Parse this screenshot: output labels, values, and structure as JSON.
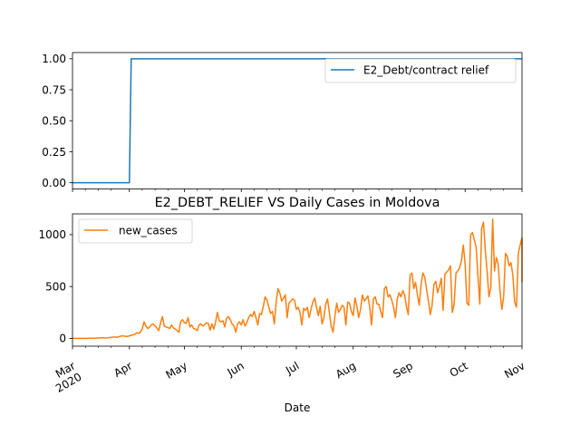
{
  "chart_data": [
    {
      "type": "line",
      "title": "",
      "xlabel": "",
      "ylabel": "",
      "ylim": [
        -0.05,
        1.05
      ],
      "yticks": [
        "0.00",
        "0.25",
        "0.50",
        "0.75",
        "1.00"
      ],
      "legend_placement": "upper right",
      "grid": false,
      "x_range": [
        "2020-03-01",
        "2020-11-01"
      ],
      "series": [
        {
          "name": "E2_Debt/contract relief",
          "color": "#1f77b4",
          "points": [
            [
              "2020-03-01",
              0
            ],
            [
              "2020-04-01",
              0
            ],
            [
              "2020-04-02",
              1
            ],
            [
              "2020-11-01",
              1
            ]
          ]
        }
      ]
    },
    {
      "type": "line",
      "title": "E2_DEBT_RELIEF VS Daily Cases in Moldova",
      "xlabel": "Date",
      "ylabel": "",
      "ylim": [
        -75,
        1200
      ],
      "yticks": [
        "0",
        "500",
        "1000"
      ],
      "legend_placement": "upper left",
      "grid": false,
      "x_range": [
        "2020-03-01",
        "2020-11-01"
      ],
      "x_tick_labels": [
        {
          "label": "Mar",
          "sub": "2020"
        },
        {
          "label": "Apr"
        },
        {
          "label": "May"
        },
        {
          "label": "Jun"
        },
        {
          "label": "Jul"
        },
        {
          "label": "Aug"
        },
        {
          "label": "Sep"
        },
        {
          "label": "Oct"
        },
        {
          "label": "Nov"
        }
      ],
      "series": [
        {
          "name": "new_cases",
          "color": "#ff7f0e",
          "start_date": "2020-03-01",
          "values": [
            0,
            0,
            0,
            0,
            0,
            0,
            0,
            1,
            0,
            1,
            2,
            1,
            0,
            3,
            5,
            4,
            6,
            7,
            3,
            6,
            8,
            10,
            12,
            14,
            10,
            15,
            20,
            25,
            22,
            20,
            18,
            25,
            30,
            35,
            38,
            55,
            48,
            60,
            90,
            160,
            120,
            95,
            110,
            130,
            140,
            120,
            100,
            75,
            150,
            210,
            120,
            110,
            105,
            95,
            130,
            100,
            90,
            75,
            60,
            165,
            180,
            150,
            145,
            200,
            110,
            130,
            95,
            90,
            75,
            130,
            140,
            120,
            130,
            150,
            145,
            80,
            140,
            90,
            160,
            250,
            170,
            160,
            170,
            110,
            195,
            210,
            180,
            140,
            120,
            60,
            140,
            160,
            130,
            180,
            120,
            150,
            200,
            230,
            210,
            260,
            200,
            130,
            240,
            230,
            310,
            400,
            370,
            300,
            240,
            260,
            140,
            350,
            480,
            440,
            360,
            390,
            420,
            200,
            340,
            360,
            380,
            370,
            280,
            300,
            250,
            130,
            290,
            270,
            300,
            200,
            280,
            350,
            390,
            300,
            220,
            310,
            140,
            200,
            330,
            380,
            250,
            120,
            60,
            210,
            340,
            250,
            280,
            320,
            300,
            130,
            350,
            340,
            260,
            220,
            390,
            310,
            200,
            280,
            420,
            360,
            380,
            410,
            300,
            130,
            380,
            400,
            330,
            330,
            260,
            200,
            480,
            500,
            400,
            420,
            370,
            300,
            200,
            380,
            440,
            400,
            460,
            420,
            310,
            230,
            610,
            630,
            480,
            540,
            420,
            320,
            520,
            630,
            590,
            470,
            360,
            230,
            320,
            520,
            550,
            440,
            500,
            580,
            270,
            620,
            640,
            660,
            700,
            250,
            330,
            630,
            650,
            680,
            750,
            900,
            720,
            340,
            320,
            1000,
            1020,
            950,
            880,
            600,
            330,
            1060,
            1120,
            850,
            640,
            400,
            490,
            1150,
            650,
            780,
            720,
            460,
            280,
            400,
            820,
            790,
            700,
            730,
            610,
            350,
            300,
            820,
            900,
            970,
            830,
            540
          ]
        }
      ]
    }
  ]
}
